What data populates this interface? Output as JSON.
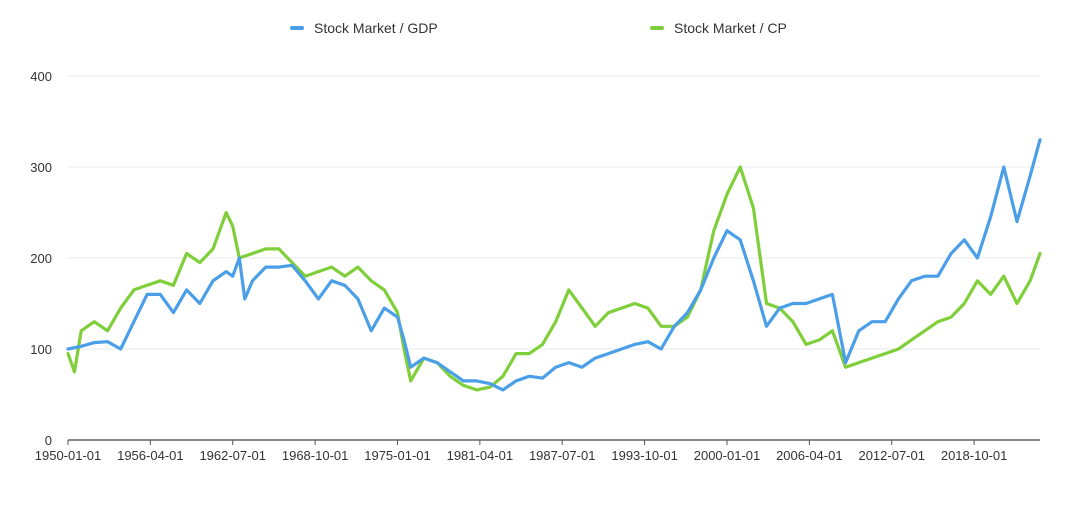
{
  "chart_data": {
    "type": "line",
    "title": "",
    "xlabel": "",
    "ylabel": "",
    "ylim": [
      0,
      400
    ],
    "y_ticks": [
      0,
      100,
      200,
      300,
      400
    ],
    "x_tick_labels": [
      "1950-01-01",
      "1956-04-01",
      "1962-07-01",
      "1968-10-01",
      "1975-01-01",
      "1981-04-01",
      "1987-07-01",
      "1993-10-01",
      "2000-01-01",
      "2006-04-01",
      "2012-07-01",
      "2018-10-01"
    ],
    "x_range": [
      "1950-01-01",
      "2023-10-01"
    ],
    "grid": true,
    "legend": "top-center",
    "series": [
      {
        "name": "Stock Market / GDP",
        "color": "#4a9fe8",
        "points": [
          [
            "1950-01-01",
            100
          ],
          [
            "1951-01-01",
            103
          ],
          [
            "1952-01-01",
            107
          ],
          [
            "1953-01-01",
            108
          ],
          [
            "1954-01-01",
            100
          ],
          [
            "1955-01-01",
            130
          ],
          [
            "1956-01-01",
            160
          ],
          [
            "1957-01-01",
            160
          ],
          [
            "1958-01-01",
            140
          ],
          [
            "1959-01-01",
            165
          ],
          [
            "1960-01-01",
            150
          ],
          [
            "1961-01-01",
            175
          ],
          [
            "1962-01-01",
            185
          ],
          [
            "1962-07-01",
            180
          ],
          [
            "1963-01-01",
            200
          ],
          [
            "1963-06-01",
            155
          ],
          [
            "1964-01-01",
            175
          ],
          [
            "1965-01-01",
            190
          ],
          [
            "1966-01-01",
            190
          ],
          [
            "1967-01-01",
            192
          ],
          [
            "1968-01-01",
            175
          ],
          [
            "1969-01-01",
            155
          ],
          [
            "1970-01-01",
            175
          ],
          [
            "1971-01-01",
            170
          ],
          [
            "1972-01-01",
            155
          ],
          [
            "1973-01-01",
            120
          ],
          [
            "1974-01-01",
            145
          ],
          [
            "1975-01-01",
            135
          ],
          [
            "1975-07-01",
            110
          ],
          [
            "1976-01-01",
            80
          ],
          [
            "1977-01-01",
            90
          ],
          [
            "1978-01-01",
            85
          ],
          [
            "1979-01-01",
            75
          ],
          [
            "1980-01-01",
            65
          ],
          [
            "1981-01-01",
            65
          ],
          [
            "1982-01-01",
            62
          ],
          [
            "1983-01-01",
            55
          ],
          [
            "1984-01-01",
            65
          ],
          [
            "1985-01-01",
            70
          ],
          [
            "1986-01-01",
            68
          ],
          [
            "1987-01-01",
            80
          ],
          [
            "1988-01-01",
            85
          ],
          [
            "1989-01-01",
            80
          ],
          [
            "1990-01-01",
            90
          ],
          [
            "1991-01-01",
            95
          ],
          [
            "1992-01-01",
            100
          ],
          [
            "1993-01-01",
            105
          ],
          [
            "1994-01-01",
            108
          ],
          [
            "1995-01-01",
            100
          ],
          [
            "1996-01-01",
            125
          ],
          [
            "1997-01-01",
            140
          ],
          [
            "1998-01-01",
            165
          ],
          [
            "1999-01-01",
            200
          ],
          [
            "2000-01-01",
            230
          ],
          [
            "2001-01-01",
            220
          ],
          [
            "2002-01-01",
            175
          ],
          [
            "2003-01-01",
            125
          ],
          [
            "2004-01-01",
            145
          ],
          [
            "2005-01-01",
            150
          ],
          [
            "2006-01-01",
            150
          ],
          [
            "2007-01-01",
            155
          ],
          [
            "2008-01-01",
            160
          ],
          [
            "2009-01-01",
            85
          ],
          [
            "2010-01-01",
            120
          ],
          [
            "2011-01-01",
            130
          ],
          [
            "2012-01-01",
            130
          ],
          [
            "2013-01-01",
            155
          ],
          [
            "2014-01-01",
            175
          ],
          [
            "2015-01-01",
            180
          ],
          [
            "2016-01-01",
            180
          ],
          [
            "2017-01-01",
            205
          ],
          [
            "2018-01-01",
            220
          ],
          [
            "2019-01-01",
            200
          ],
          [
            "2020-01-01",
            245
          ],
          [
            "2021-01-01",
            300
          ],
          [
            "2022-01-01",
            240
          ],
          [
            "2023-01-01",
            290
          ],
          [
            "2023-10-01",
            330
          ]
        ]
      },
      {
        "name": "Stock Market / CP",
        "color": "#7fcf3a",
        "points": [
          [
            "1950-01-01",
            95
          ],
          [
            "1950-07-01",
            75
          ],
          [
            "1951-01-01",
            120
          ],
          [
            "1952-01-01",
            130
          ],
          [
            "1953-01-01",
            120
          ],
          [
            "1954-01-01",
            145
          ],
          [
            "1955-01-01",
            165
          ],
          [
            "1956-01-01",
            170
          ],
          [
            "1957-01-01",
            175
          ],
          [
            "1958-01-01",
            170
          ],
          [
            "1959-01-01",
            205
          ],
          [
            "1960-01-01",
            195
          ],
          [
            "1961-01-01",
            210
          ],
          [
            "1962-01-01",
            250
          ],
          [
            "1962-07-01",
            235
          ],
          [
            "1963-01-01",
            200
          ],
          [
            "1964-01-01",
            205
          ],
          [
            "1965-01-01",
            210
          ],
          [
            "1966-01-01",
            210
          ],
          [
            "1967-01-01",
            195
          ],
          [
            "1968-01-01",
            180
          ],
          [
            "1969-01-01",
            185
          ],
          [
            "1970-01-01",
            190
          ],
          [
            "1971-01-01",
            180
          ],
          [
            "1972-01-01",
            190
          ],
          [
            "1973-01-01",
            175
          ],
          [
            "1974-01-01",
            165
          ],
          [
            "1975-01-01",
            140
          ],
          [
            "1975-07-01",
            100
          ],
          [
            "1976-01-01",
            65
          ],
          [
            "1977-01-01",
            90
          ],
          [
            "1978-01-01",
            85
          ],
          [
            "1979-01-01",
            70
          ],
          [
            "1980-01-01",
            60
          ],
          [
            "1981-01-01",
            55
          ],
          [
            "1982-01-01",
            58
          ],
          [
            "1983-01-01",
            70
          ],
          [
            "1984-01-01",
            95
          ],
          [
            "1985-01-01",
            95
          ],
          [
            "1986-01-01",
            105
          ],
          [
            "1987-01-01",
            130
          ],
          [
            "1988-01-01",
            165
          ],
          [
            "1989-01-01",
            145
          ],
          [
            "1990-01-01",
            125
          ],
          [
            "1991-01-01",
            140
          ],
          [
            "1992-01-01",
            145
          ],
          [
            "1993-01-01",
            150
          ],
          [
            "1994-01-01",
            145
          ],
          [
            "1995-01-01",
            125
          ],
          [
            "1996-01-01",
            125
          ],
          [
            "1997-01-01",
            135
          ],
          [
            "1998-01-01",
            165
          ],
          [
            "1999-01-01",
            230
          ],
          [
            "2000-01-01",
            270
          ],
          [
            "2001-01-01",
            300
          ],
          [
            "2002-01-01",
            255
          ],
          [
            "2003-01-01",
            150
          ],
          [
            "2004-01-01",
            145
          ],
          [
            "2005-01-01",
            130
          ],
          [
            "2006-01-01",
            105
          ],
          [
            "2007-01-01",
            110
          ],
          [
            "2008-01-01",
            120
          ],
          [
            "2009-01-01",
            80
          ],
          [
            "2010-01-01",
            85
          ],
          [
            "2011-01-01",
            90
          ],
          [
            "2012-01-01",
            95
          ],
          [
            "2013-01-01",
            100
          ],
          [
            "2014-01-01",
            110
          ],
          [
            "2015-01-01",
            120
          ],
          [
            "2016-01-01",
            130
          ],
          [
            "2017-01-01",
            135
          ],
          [
            "2018-01-01",
            150
          ],
          [
            "2019-01-01",
            175
          ],
          [
            "2020-01-01",
            160
          ],
          [
            "2021-01-01",
            180
          ],
          [
            "2022-01-01",
            150
          ],
          [
            "2023-01-01",
            175
          ],
          [
            "2023-10-01",
            205
          ]
        ]
      }
    ]
  }
}
